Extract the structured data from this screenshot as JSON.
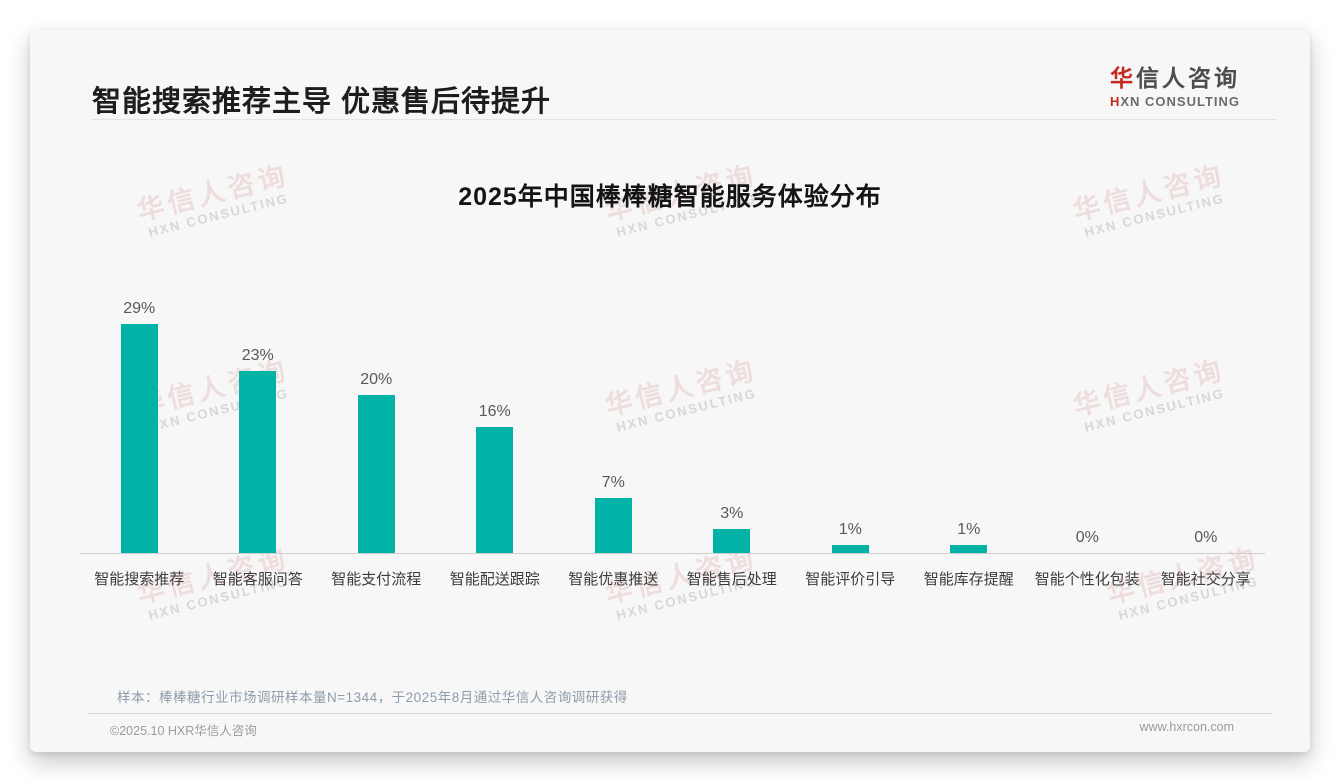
{
  "slide": {
    "title": "智能搜索推荐主导 优惠售后待提升",
    "logo": {
      "cn_first": "华",
      "cn_rest": "信人咨询",
      "en_first": "H",
      "en_rest": "XN CONSULTING"
    },
    "watermark": {
      "line1": "华信人咨询",
      "line2": "HXN CONSULTING"
    },
    "note": "样本：棒棒糖行业市场调研样本量N=1344，于2025年8月通过华信人咨询调研获得",
    "footer_left": "©2025.10 HXR华信人咨询",
    "footer_right": "www.hxrcon.com"
  },
  "colors": {
    "bar_teal": "#00b3a6",
    "logo_red": "#c5281e",
    "slide_background": "#f7f7f7"
  },
  "chart_data": {
    "type": "bar",
    "title": "2025年中国棒棒糖智能服务体验分布",
    "categories": [
      "智能搜索推荐",
      "智能客服问答",
      "智能支付流程",
      "智能配送跟踪",
      "智能优惠推送",
      "智能售后处理",
      "智能评价引导",
      "智能库存提醒",
      "智能个性化包装",
      "智能社交分享"
    ],
    "values": [
      29,
      23,
      20,
      16,
      7,
      3,
      1,
      1,
      0,
      0
    ],
    "value_labels": [
      "29%",
      "23%",
      "20%",
      "16%",
      "7%",
      "3%",
      "1%",
      "1%",
      "0%",
      "0%"
    ],
    "xlabel": "",
    "ylabel": "",
    "ylim": [
      0,
      32
    ],
    "grid": false,
    "legend": null,
    "bar_color": "#00b3a6"
  }
}
